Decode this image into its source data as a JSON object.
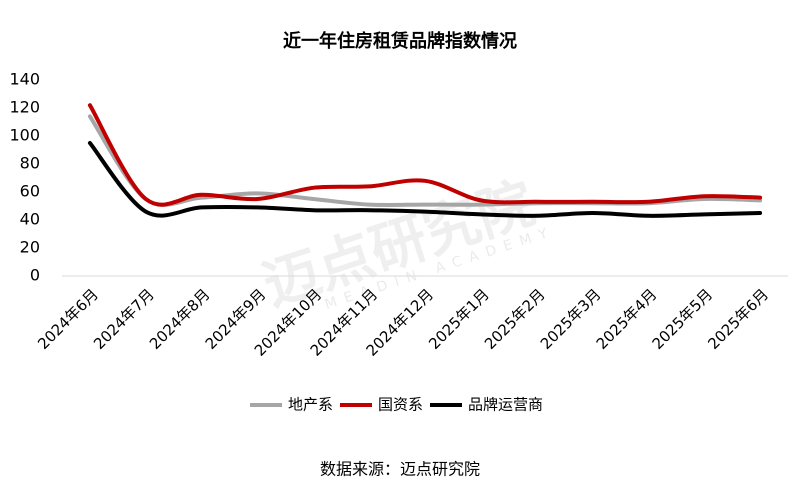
{
  "chart_data": {
    "type": "line",
    "title": "近一年住房租赁品牌指数情况",
    "categories": [
      "2024年6月",
      "2024年7月",
      "2024年8月",
      "2024年9月",
      "2024年10月",
      "2024年11月",
      "2024年12月",
      "2025年1月",
      "2025年2月",
      "2025年3月",
      "2025年4月",
      "2025年5月",
      "2025年6月"
    ],
    "series": [
      {
        "name": "地产系",
        "color": "#a6a6a6",
        "values": [
          114,
          55,
          56,
          59,
          55,
          51,
          51,
          51,
          52,
          52,
          52,
          55,
          54
        ]
      },
      {
        "name": "国资系",
        "color": "#c00000",
        "values": [
          122,
          55,
          58,
          55,
          63,
          64,
          68,
          54,
          53,
          53,
          53,
          57,
          56
        ]
      },
      {
        "name": "品牌运营商",
        "color": "#000000",
        "values": [
          95,
          46,
          49,
          49,
          47,
          47,
          46,
          44,
          43,
          45,
          43,
          44,
          45
        ]
      }
    ],
    "ylim": [
      0,
      140
    ],
    "yticks": [
      0,
      20,
      40,
      60,
      80,
      100,
      120,
      140
    ],
    "grid": false,
    "legend": "bottom",
    "source": "数据来源：迈点研究院",
    "watermark": "迈点研究院",
    "watermark_sub": "MEADIN ACADEMY"
  }
}
